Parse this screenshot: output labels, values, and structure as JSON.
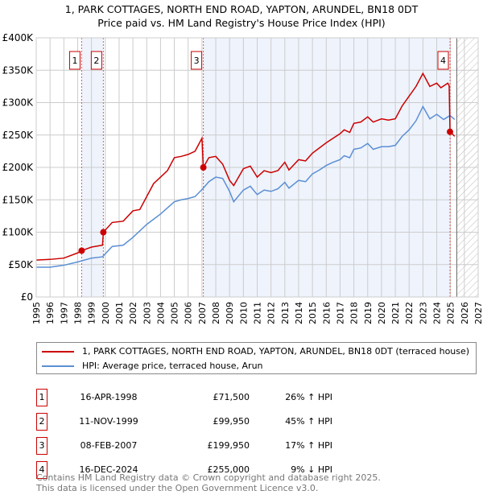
{
  "title": "1, PARK COTTAGES, NORTH END ROAD, YAPTON, ARUNDEL, BN18 0DT",
  "subtitle": "Price paid vs. HM Land Registry's House Price Index (HPI)",
  "chart_data": {
    "type": "line",
    "ylim": [
      0,
      400000
    ],
    "xlim": [
      1995,
      2027
    ],
    "yticks": [
      {
        "v": 0,
        "l": "£0"
      },
      {
        "v": 50000,
        "l": "£50K"
      },
      {
        "v": 100000,
        "l": "£100K"
      },
      {
        "v": 150000,
        "l": "£150K"
      },
      {
        "v": 200000,
        "l": "£200K"
      },
      {
        "v": 250000,
        "l": "£250K"
      },
      {
        "v": 300000,
        "l": "£300K"
      },
      {
        "v": 350000,
        "l": "£350K"
      },
      {
        "v": 400000,
        "l": "£400K"
      }
    ],
    "xticks": [
      "1995",
      "1996",
      "1997",
      "1998",
      "1999",
      "2000",
      "2001",
      "2002",
      "2003",
      "2004",
      "2005",
      "2006",
      "2007",
      "2008",
      "2009",
      "2010",
      "2011",
      "2012",
      "2013",
      "2014",
      "2015",
      "2016",
      "2017",
      "2018",
      "2019",
      "2020",
      "2021",
      "2022",
      "2023",
      "2024",
      "2025",
      "2026",
      "2027"
    ],
    "shaded": [
      [
        1998.29,
        1999.86
      ],
      [
        2007.1,
        2024.96
      ]
    ],
    "hatch_from": 2025.45,
    "colors": {
      "price": "#cc0000",
      "hpi": "#5b8fd4"
    },
    "series": [
      {
        "name": "1, PARK COTTAGES, NORTH END ROAD, YAPTON, ARUNDEL, BN18 0DT (terraced house)",
        "color": "#cc0000",
        "points": [
          [
            1995,
            57
          ],
          [
            1996,
            58
          ],
          [
            1997,
            60
          ],
          [
            1998,
            68
          ],
          [
            1998.29,
            71.5
          ],
          [
            1999,
            77
          ],
          [
            1999.8,
            80
          ],
          [
            1999.86,
            99.95
          ],
          [
            2000.5,
            115
          ],
          [
            2001.3,
            117
          ],
          [
            2002,
            133
          ],
          [
            2002.5,
            135
          ],
          [
            2003,
            155
          ],
          [
            2003.5,
            175
          ],
          [
            2004,
            185
          ],
          [
            2004.5,
            195
          ],
          [
            2005,
            215
          ],
          [
            2005.5,
            217
          ],
          [
            2006,
            220
          ],
          [
            2006.5,
            225
          ],
          [
            2007.0,
            245
          ],
          [
            2007.1,
            199.95
          ],
          [
            2007.5,
            215
          ],
          [
            2008,
            217
          ],
          [
            2008.5,
            205
          ],
          [
            2009,
            180
          ],
          [
            2009.3,
            172
          ],
          [
            2010,
            198
          ],
          [
            2010.5,
            202
          ],
          [
            2011,
            185
          ],
          [
            2011.5,
            195
          ],
          [
            2012,
            192
          ],
          [
            2012.5,
            195
          ],
          [
            2013,
            208
          ],
          [
            2013.3,
            196
          ],
          [
            2014,
            212
          ],
          [
            2014.5,
            210
          ],
          [
            2015,
            222
          ],
          [
            2015.5,
            230
          ],
          [
            2016,
            238
          ],
          [
            2016.5,
            245
          ],
          [
            2017,
            252
          ],
          [
            2017.3,
            258
          ],
          [
            2017.7,
            254
          ],
          [
            2018,
            268
          ],
          [
            2018.5,
            270
          ],
          [
            2019,
            278
          ],
          [
            2019.4,
            270
          ],
          [
            2020,
            275
          ],
          [
            2020.5,
            273
          ],
          [
            2021,
            275
          ],
          [
            2021.5,
            295
          ],
          [
            2022,
            310
          ],
          [
            2022.5,
            325
          ],
          [
            2023,
            345
          ],
          [
            2023.5,
            325
          ],
          [
            2024,
            330
          ],
          [
            2024.3,
            323
          ],
          [
            2024.8,
            330
          ],
          [
            2024.9,
            326
          ],
          [
            2024.96,
            255
          ],
          [
            2025.3,
            248
          ]
        ]
      },
      {
        "name": "HPI: Average price, terraced house, Arun",
        "color": "#5b8fd4",
        "points": [
          [
            1995,
            46
          ],
          [
            1996,
            46
          ],
          [
            1997,
            49
          ],
          [
            1998,
            54
          ],
          [
            1999,
            60
          ],
          [
            1999.8,
            62
          ],
          [
            2000.5,
            78
          ],
          [
            2001.3,
            80
          ],
          [
            2002,
            92
          ],
          [
            2003,
            112
          ],
          [
            2003.5,
            120
          ],
          [
            2004,
            128
          ],
          [
            2005,
            147
          ],
          [
            2005.5,
            150
          ],
          [
            2006,
            152
          ],
          [
            2006.5,
            155
          ],
          [
            2007.1,
            168
          ],
          [
            2007.5,
            178
          ],
          [
            2008,
            185
          ],
          [
            2008.5,
            183
          ],
          [
            2009,
            163
          ],
          [
            2009.3,
            147
          ],
          [
            2010,
            165
          ],
          [
            2010.5,
            171
          ],
          [
            2011,
            158
          ],
          [
            2011.5,
            165
          ],
          [
            2012,
            163
          ],
          [
            2012.5,
            167
          ],
          [
            2013,
            177
          ],
          [
            2013.3,
            168
          ],
          [
            2014,
            180
          ],
          [
            2014.5,
            178
          ],
          [
            2015,
            190
          ],
          [
            2015.5,
            196
          ],
          [
            2016,
            203
          ],
          [
            2016.5,
            208
          ],
          [
            2017,
            212
          ],
          [
            2017.3,
            218
          ],
          [
            2017.7,
            215
          ],
          [
            2018,
            228
          ],
          [
            2018.5,
            230
          ],
          [
            2019,
            237
          ],
          [
            2019.4,
            228
          ],
          [
            2020,
            232
          ],
          [
            2020.5,
            232
          ],
          [
            2021,
            234
          ],
          [
            2021.5,
            248
          ],
          [
            2022,
            258
          ],
          [
            2022.5,
            272
          ],
          [
            2023,
            294
          ],
          [
            2023.5,
            275
          ],
          [
            2024,
            282
          ],
          [
            2024.5,
            274
          ],
          [
            2024.96,
            280
          ],
          [
            2025.3,
            274
          ]
        ]
      }
    ],
    "sales": [
      {
        "n": "1",
        "x": 1998.29,
        "y": 71.5
      },
      {
        "n": "2",
        "x": 1999.86,
        "y": 99.95
      },
      {
        "n": "3",
        "x": 2007.1,
        "y": 199.95
      },
      {
        "n": "4",
        "x": 2024.96,
        "y": 255
      }
    ]
  },
  "legend": {
    "price": "1, PARK COTTAGES, NORTH END ROAD, YAPTON, ARUNDEL, BN18 0DT (terraced house)",
    "hpi": "HPI: Average price, terraced house, Arun"
  },
  "table": [
    {
      "n": "1",
      "date": "16-APR-1998",
      "price": "£71,500",
      "hpi": "26% ↑ HPI"
    },
    {
      "n": "2",
      "date": "11-NOV-1999",
      "price": "£99,950",
      "hpi": "45% ↑ HPI"
    },
    {
      "n": "3",
      "date": "08-FEB-2007",
      "price": "£199,950",
      "hpi": "17% ↑ HPI"
    },
    {
      "n": "4",
      "date": "16-DEC-2024",
      "price": "£255,000",
      "hpi": "9% ↓ HPI"
    }
  ],
  "footer": [
    "Contains HM Land Registry data © Crown copyright and database right 2025.",
    "This data is licensed under the Open Government Licence v3.0."
  ]
}
